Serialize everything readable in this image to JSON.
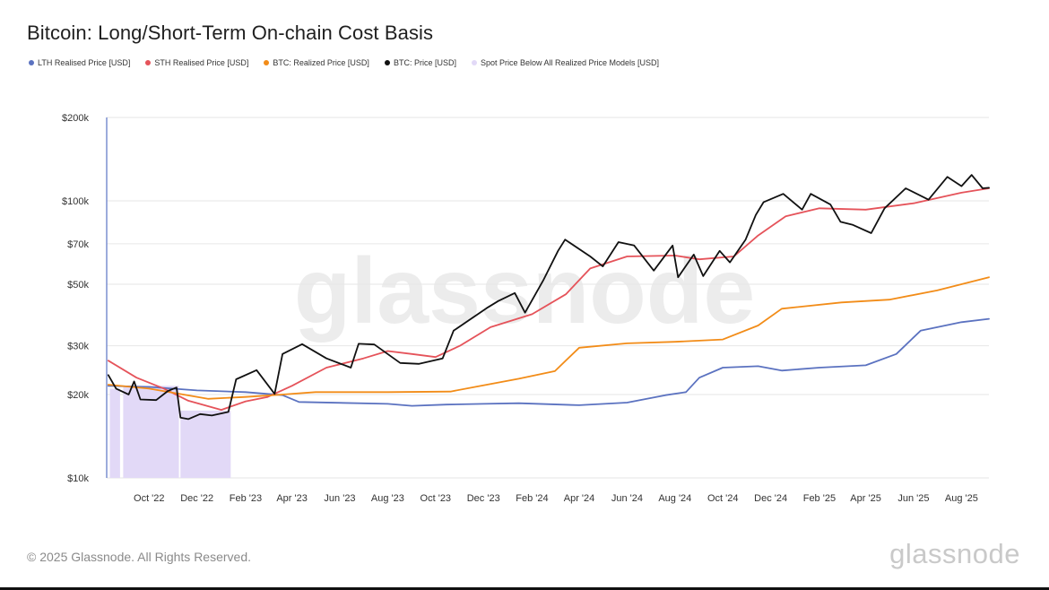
{
  "header": {
    "title": "Bitcoin: Long/Short-Term On-chain Cost Basis"
  },
  "legend": [
    {
      "label": "LTH Realised Price [USD]",
      "color": "#5b72c0"
    },
    {
      "label": "STH Realised Price [USD]",
      "color": "#e5535a"
    },
    {
      "label": "BTC: Realized Price [USD]",
      "color": "#f28c18"
    },
    {
      "label": "BTC: Price [USD]",
      "color": "#111111"
    },
    {
      "label": "Spot Price Below All Realized Price Models [USD]",
      "color": "#e2d9f7"
    }
  ],
  "watermark": "glassnode",
  "footer": {
    "copyright": "© 2025 Glassnode. All Rights Reserved.",
    "brand": "glassnode"
  },
  "chart_data": {
    "type": "line",
    "y_scale": "log",
    "ylim": [
      10000,
      200000
    ],
    "xlim": [
      "2022-08-08",
      "2025-09-05"
    ],
    "grid": true,
    "y_ticks": [
      {
        "value": 10000,
        "label": "$10k"
      },
      {
        "value": 20000,
        "label": "$20k"
      },
      {
        "value": 30000,
        "label": "$30k"
      },
      {
        "value": 50000,
        "label": "$50k"
      },
      {
        "value": 70000,
        "label": "$70k"
      },
      {
        "value": 100000,
        "label": "$100k"
      },
      {
        "value": 200000,
        "label": "$200k"
      }
    ],
    "x_ticks": [
      {
        "date": "2022-10-01",
        "label": "Oct '22"
      },
      {
        "date": "2022-12-01",
        "label": "Dec '22"
      },
      {
        "date": "2023-02-01",
        "label": "Feb '23"
      },
      {
        "date": "2023-04-01",
        "label": "Apr '23"
      },
      {
        "date": "2023-06-01",
        "label": "Jun '23"
      },
      {
        "date": "2023-08-01",
        "label": "Aug '23"
      },
      {
        "date": "2023-10-01",
        "label": "Oct '23"
      },
      {
        "date": "2023-12-01",
        "label": "Dec '23"
      },
      {
        "date": "2024-02-01",
        "label": "Feb '24"
      },
      {
        "date": "2024-04-01",
        "label": "Apr '24"
      },
      {
        "date": "2024-06-01",
        "label": "Jun '24"
      },
      {
        "date": "2024-08-01",
        "label": "Aug '24"
      },
      {
        "date": "2024-10-01",
        "label": "Oct '24"
      },
      {
        "date": "2024-12-01",
        "label": "Dec '24"
      },
      {
        "date": "2025-02-01",
        "label": "Feb '25"
      },
      {
        "date": "2025-04-01",
        "label": "Apr '25"
      },
      {
        "date": "2025-06-01",
        "label": "Jun '25"
      },
      {
        "date": "2025-08-01",
        "label": "Aug '25"
      }
    ],
    "shaded_ranges": [
      {
        "start": "2022-08-12",
        "end": "2022-08-25",
        "top": 21000
      },
      {
        "start": "2022-08-29",
        "end": "2022-11-08",
        "top": 21500
      },
      {
        "start": "2022-11-10",
        "end": "2023-01-13",
        "top": 17500
      }
    ],
    "series": [
      {
        "name": "LTH Realised Price [USD]",
        "color": "#5b72c0",
        "points": [
          [
            "2022-08-10",
            21500
          ],
          [
            "2022-10-01",
            21300
          ],
          [
            "2022-12-01",
            20700
          ],
          [
            "2023-02-01",
            20400
          ],
          [
            "2023-03-20",
            19900
          ],
          [
            "2023-04-10",
            18800
          ],
          [
            "2023-08-01",
            18500
          ],
          [
            "2023-09-01",
            18200
          ],
          [
            "2023-10-15",
            18400
          ],
          [
            "2023-12-01",
            18500
          ],
          [
            "2024-01-15",
            18600
          ],
          [
            "2024-04-01",
            18300
          ],
          [
            "2024-06-01",
            18700
          ],
          [
            "2024-07-20",
            19900
          ],
          [
            "2024-08-15",
            20400
          ],
          [
            "2024-09-01",
            23000
          ],
          [
            "2024-10-01",
            25000
          ],
          [
            "2024-11-15",
            25300
          ],
          [
            "2024-12-15",
            24400
          ],
          [
            "2025-02-01",
            25000
          ],
          [
            "2025-04-01",
            25500
          ],
          [
            "2025-05-10",
            28000
          ],
          [
            "2025-06-10",
            34000
          ],
          [
            "2025-08-01",
            36500
          ],
          [
            "2025-09-05",
            37500
          ]
        ]
      },
      {
        "name": "STH Realised Price [USD]",
        "color": "#e5535a",
        "points": [
          [
            "2022-08-10",
            26500
          ],
          [
            "2022-09-15",
            23000
          ],
          [
            "2022-10-20",
            21000
          ],
          [
            "2022-11-20",
            19000
          ],
          [
            "2023-01-01",
            17600
          ],
          [
            "2023-02-01",
            18900
          ],
          [
            "2023-03-01",
            19600
          ],
          [
            "2023-04-01",
            21500
          ],
          [
            "2023-05-15",
            25000
          ],
          [
            "2023-07-01",
            27000
          ],
          [
            "2023-08-01",
            28700
          ],
          [
            "2023-09-01",
            28000
          ],
          [
            "2023-10-01",
            27300
          ],
          [
            "2023-11-01",
            30000
          ],
          [
            "2023-12-10",
            35000
          ],
          [
            "2024-02-01",
            39000
          ],
          [
            "2024-03-15",
            46000
          ],
          [
            "2024-04-15",
            57000
          ],
          [
            "2024-06-01",
            63000
          ],
          [
            "2024-08-01",
            63500
          ],
          [
            "2024-09-01",
            61500
          ],
          [
            "2024-10-15",
            63000
          ],
          [
            "2024-11-15",
            75000
          ],
          [
            "2024-12-20",
            88000
          ],
          [
            "2025-02-01",
            94000
          ],
          [
            "2025-04-01",
            93000
          ],
          [
            "2025-06-01",
            98000
          ],
          [
            "2025-08-01",
            107000
          ],
          [
            "2025-09-05",
            111000
          ]
        ]
      },
      {
        "name": "BTC: Realized Price [USD]",
        "color": "#f28c18",
        "points": [
          [
            "2022-08-10",
            21700
          ],
          [
            "2022-10-01",
            21000
          ],
          [
            "2022-12-15",
            19300
          ],
          [
            "2023-02-01",
            19600
          ],
          [
            "2023-03-20",
            20000
          ],
          [
            "2023-05-01",
            20400
          ],
          [
            "2023-08-01",
            20400
          ],
          [
            "2023-10-20",
            20500
          ],
          [
            "2023-12-01",
            21600
          ],
          [
            "2024-01-15",
            22800
          ],
          [
            "2024-03-01",
            24300
          ],
          [
            "2024-04-01",
            29500
          ],
          [
            "2024-06-01",
            30600
          ],
          [
            "2024-08-01",
            31000
          ],
          [
            "2024-10-01",
            31600
          ],
          [
            "2024-11-15",
            35500
          ],
          [
            "2024-12-15",
            40800
          ],
          [
            "2025-03-01",
            43000
          ],
          [
            "2025-05-01",
            44000
          ],
          [
            "2025-07-01",
            47500
          ],
          [
            "2025-09-05",
            53000
          ]
        ]
      },
      {
        "name": "BTC: Price [USD]",
        "color": "#111111",
        "points": [
          [
            "2022-08-10",
            23500
          ],
          [
            "2022-08-20",
            21000
          ],
          [
            "2022-09-05",
            20000
          ],
          [
            "2022-09-12",
            22300
          ],
          [
            "2022-09-20",
            19200
          ],
          [
            "2022-10-10",
            19100
          ],
          [
            "2022-10-25",
            20600
          ],
          [
            "2022-11-05",
            21200
          ],
          [
            "2022-11-10",
            16500
          ],
          [
            "2022-11-20",
            16300
          ],
          [
            "2022-12-05",
            17000
          ],
          [
            "2022-12-20",
            16800
          ],
          [
            "2023-01-10",
            17300
          ],
          [
            "2023-01-20",
            22700
          ],
          [
            "2023-02-15",
            24500
          ],
          [
            "2023-03-10",
            20100
          ],
          [
            "2023-03-20",
            28000
          ],
          [
            "2023-04-14",
            30400
          ],
          [
            "2023-05-15",
            27000
          ],
          [
            "2023-06-15",
            25000
          ],
          [
            "2023-06-25",
            30500
          ],
          [
            "2023-07-15",
            30300
          ],
          [
            "2023-08-17",
            26000
          ],
          [
            "2023-09-10",
            25800
          ],
          [
            "2023-10-10",
            27000
          ],
          [
            "2023-10-24",
            34000
          ],
          [
            "2023-12-05",
            41000
          ],
          [
            "2023-12-20",
            43500
          ],
          [
            "2024-01-10",
            46500
          ],
          [
            "2024-01-23",
            39500
          ],
          [
            "2024-02-15",
            51500
          ],
          [
            "2024-03-05",
            66000
          ],
          [
            "2024-03-14",
            72500
          ],
          [
            "2024-04-15",
            63000
          ],
          [
            "2024-05-01",
            58000
          ],
          [
            "2024-05-21",
            71000
          ],
          [
            "2024-06-10",
            69000
          ],
          [
            "2024-07-05",
            56000
          ],
          [
            "2024-07-29",
            69000
          ],
          [
            "2024-08-05",
            53000
          ],
          [
            "2024-08-25",
            64000
          ],
          [
            "2024-09-06",
            53500
          ],
          [
            "2024-09-27",
            66000
          ],
          [
            "2024-10-10",
            60000
          ],
          [
            "2024-10-30",
            72500
          ],
          [
            "2024-11-12",
            89000
          ],
          [
            "2024-11-22",
            99000
          ],
          [
            "2024-12-17",
            106000
          ],
          [
            "2025-01-10",
            93000
          ],
          [
            "2025-01-21",
            106000
          ],
          [
            "2025-02-15",
            97000
          ],
          [
            "2025-02-28",
            84000
          ],
          [
            "2025-03-15",
            82000
          ],
          [
            "2025-04-08",
            76500
          ],
          [
            "2025-04-25",
            94000
          ],
          [
            "2025-05-22",
            111000
          ],
          [
            "2025-06-20",
            101000
          ],
          [
            "2025-07-14",
            122000
          ],
          [
            "2025-08-01",
            113000
          ],
          [
            "2025-08-14",
            124000
          ],
          [
            "2025-08-28",
            111000
          ],
          [
            "2025-09-05",
            111500
          ]
        ]
      }
    ]
  }
}
